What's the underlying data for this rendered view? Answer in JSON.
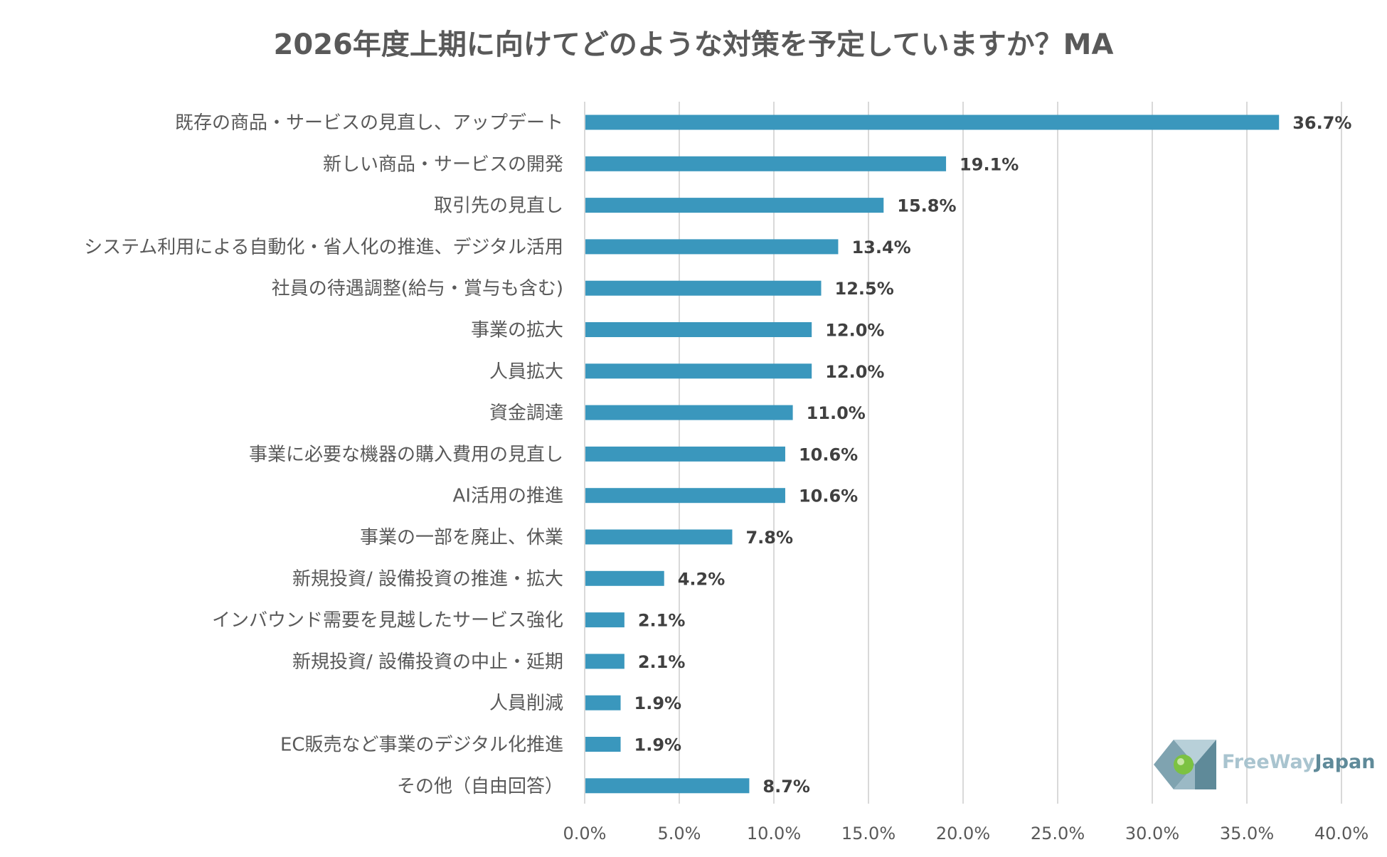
{
  "chart_data": {
    "type": "bar",
    "orientation": "horizontal",
    "title": "2026年度上期に向けてどのような対策を予定していますか？MA",
    "categories": [
      "既存の商品・サービスの見直し、アップデート",
      "新しい商品・サービスの開発",
      "取引先の見直し",
      "システム利用による自動化・省人化の推進、デジタル活用",
      "社員の待遇調整(給与・賞与も含む)",
      "事業の拡大",
      "人員拡大",
      "資金調達",
      "事業に必要な機器の購入費用の見直し",
      "AI活用の推進",
      "事業の一部を廃止、休業",
      "新規投資/ 設備投資の推進・拡大",
      "インバウンド需要を見越したサービス強化",
      "新規投資/ 設備投資の中止・延期",
      "人員削減",
      "EC販売など事業のデジタル化推進",
      "その他（自由回答）"
    ],
    "values": [
      36.7,
      19.1,
      15.8,
      13.4,
      12.5,
      12.0,
      12.0,
      11.0,
      10.6,
      10.6,
      7.8,
      4.2,
      2.1,
      2.1,
      1.9,
      1.9,
      8.7
    ],
    "value_labels": [
      "36.7%",
      "19.1%",
      "15.8%",
      "13.4%",
      "12.5%",
      "12.0%",
      "12.0%",
      "11.0%",
      "10.6%",
      "10.6%",
      "7.8%",
      "4.2%",
      "2.1%",
      "2.1%",
      "1.9%",
      "1.9%",
      "8.7%"
    ],
    "xlim": [
      0,
      40
    ],
    "x_ticks": [
      "0.0%",
      "5.0%",
      "10.0%",
      "15.0%",
      "20.0%",
      "25.0%",
      "30.0%",
      "35.0%",
      "40.0%"
    ],
    "grid": true,
    "bar_color": "#3a97bd",
    "grid_color": "#d9d9d9"
  },
  "logo": {
    "text_part1": "FreeWay",
    "text_part2": "Japan"
  }
}
